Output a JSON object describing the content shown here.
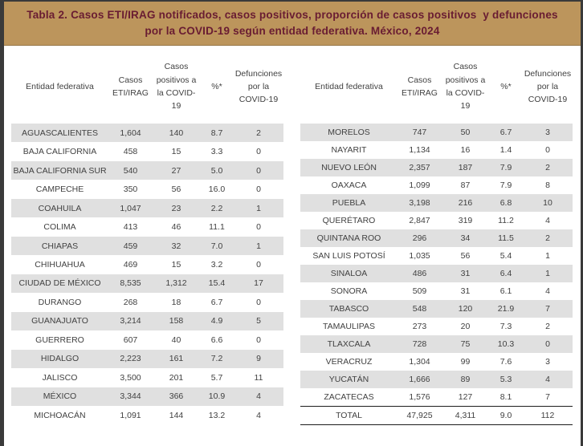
{
  "title_banner": {
    "text_line1": "Tabla 2. Casos ETI/IRAG notificados, casos positivos, proporción de casos positivos  y defunciones",
    "text_line2": "por la COVID-19 según entidad federativa. México, 2024",
    "background_color": "#BC955C",
    "text_color": "#691C32"
  },
  "colors": {
    "frame": "#3A3A3A",
    "row_stripe": "#E0E0E0",
    "table_text": "#414141",
    "total_rule": "#1C1C1C"
  },
  "table_columns": [
    "Entidad federativa",
    "Casos ETI/IRAG",
    "Casos positivos a la COVID-19",
    "%*",
    "Defunciones por la COVID-19"
  ],
  "left_table": {
    "rows": [
      [
        "AGUASCALIENTES",
        "1,604",
        "140",
        "8.7",
        "2"
      ],
      [
        "BAJA CALIFORNIA",
        "458",
        "15",
        "3.3",
        "0"
      ],
      [
        "BAJA CALIFORNIA SUR",
        "540",
        "27",
        "5.0",
        "0"
      ],
      [
        "CAMPECHE",
        "350",
        "56",
        "16.0",
        "0"
      ],
      [
        "COAHUILA",
        "1,047",
        "23",
        "2.2",
        "1"
      ],
      [
        "COLIMA",
        "413",
        "46",
        "11.1",
        "0"
      ],
      [
        "CHIAPAS",
        "459",
        "32",
        "7.0",
        "1"
      ],
      [
        "CHIHUAHUA",
        "469",
        "15",
        "3.2",
        "0"
      ],
      [
        "CIUDAD DE MÉXICO",
        "8,535",
        "1,312",
        "15.4",
        "17"
      ],
      [
        "DURANGO",
        "268",
        "18",
        "6.7",
        "0"
      ],
      [
        "GUANAJUATO",
        "3,214",
        "158",
        "4.9",
        "5"
      ],
      [
        "GUERRERO",
        "607",
        "40",
        "6.6",
        "0"
      ],
      [
        "HIDALGO",
        "2,223",
        "161",
        "7.2",
        "9"
      ],
      [
        "JALISCO",
        "3,500",
        "201",
        "5.7",
        "11"
      ],
      [
        "MÉXICO",
        "3,344",
        "366",
        "10.9",
        "4"
      ],
      [
        "MICHOACÁN",
        "1,091",
        "144",
        "13.2",
        "4"
      ]
    ]
  },
  "right_table": {
    "rows": [
      [
        "MORELOS",
        "747",
        "50",
        "6.7",
        "3"
      ],
      [
        "NAYARIT",
        "1,134",
        "16",
        "1.4",
        "0"
      ],
      [
        "NUEVO LEÓN",
        "2,357",
        "187",
        "7.9",
        "2"
      ],
      [
        "OAXACA",
        "1,099",
        "87",
        "7.9",
        "8"
      ],
      [
        "PUEBLA",
        "3,198",
        "216",
        "6.8",
        "10"
      ],
      [
        "QUERÉTARO",
        "2,847",
        "319",
        "11.2",
        "4"
      ],
      [
        "QUINTANA ROO",
        "296",
        "34",
        "11.5",
        "2"
      ],
      [
        "SAN LUIS POTOSÍ",
        "1,035",
        "56",
        "5.4",
        "1"
      ],
      [
        "SINALOA",
        "486",
        "31",
        "6.4",
        "1"
      ],
      [
        "SONORA",
        "509",
        "31",
        "6.1",
        "4"
      ],
      [
        "TABASCO",
        "548",
        "120",
        "21.9",
        "7"
      ],
      [
        "TAMAULIPAS",
        "273",
        "20",
        "7.3",
        "2"
      ],
      [
        "TLAXCALA",
        "728",
        "75",
        "10.3",
        "0"
      ],
      [
        "VERACRUZ",
        "1,304",
        "99",
        "7.6",
        "3"
      ],
      [
        "YUCATÁN",
        "1,666",
        "89",
        "5.3",
        "4"
      ],
      [
        "ZACATECAS",
        "1,576",
        "127",
        "8.1",
        "7"
      ]
    ],
    "total_row": [
      "TOTAL",
      "47,925",
      "4,311",
      "9.0",
      "112"
    ]
  }
}
